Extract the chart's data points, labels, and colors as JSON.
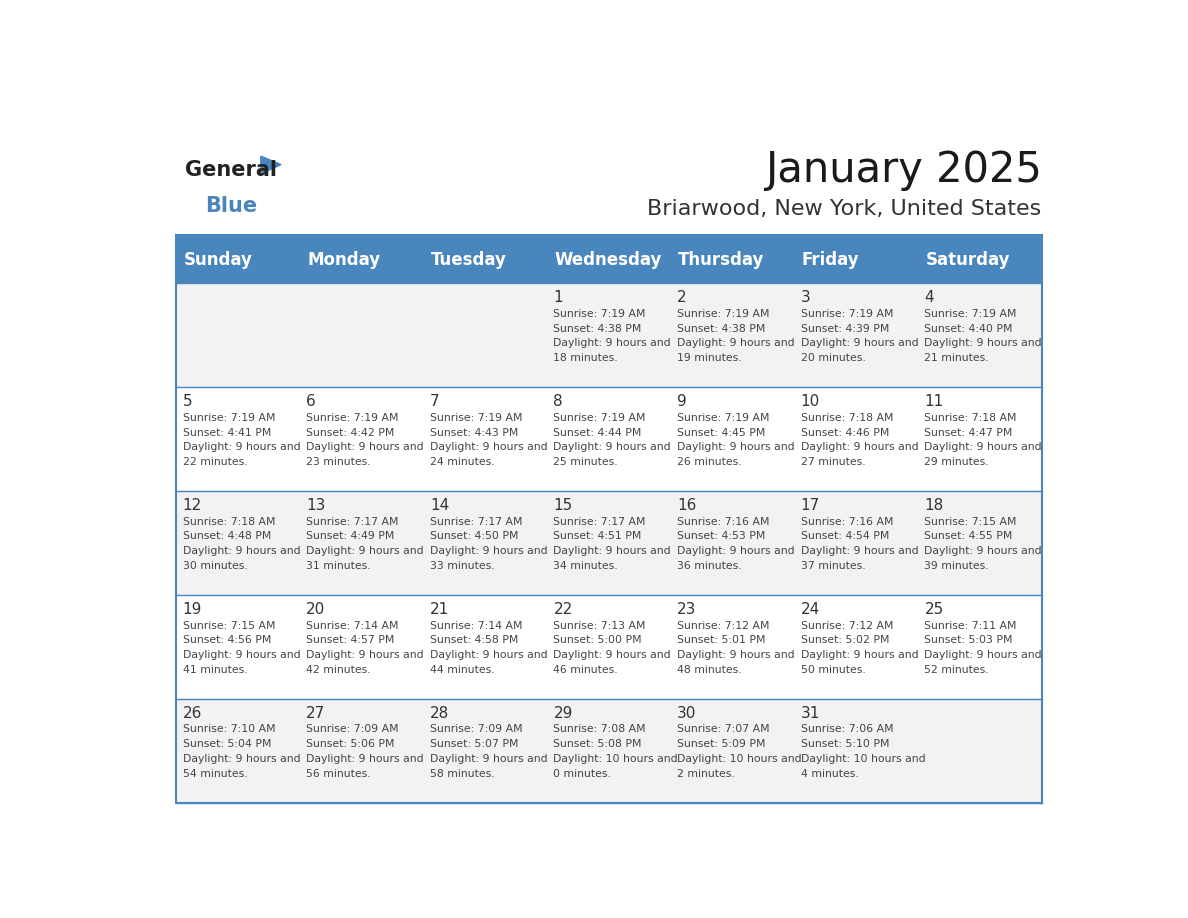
{
  "title": "January 2025",
  "subtitle": "Briarwood, New York, United States",
  "days_of_week": [
    "Sunday",
    "Monday",
    "Tuesday",
    "Wednesday",
    "Thursday",
    "Friday",
    "Saturday"
  ],
  "header_bg": "#4a86be",
  "header_text": "#ffffff",
  "row_bg_even": "#f2f2f2",
  "row_bg_odd": "#ffffff",
  "cell_text_color": "#333333",
  "day_num_color": "#333333",
  "separator_color": "#4a86be",
  "logo_general_color": "#222222",
  "logo_blue_color": "#4a86be",
  "calendar_data": [
    {
      "day": 1,
      "col": 3,
      "row": 0,
      "sunrise": "7:19 AM",
      "sunset": "4:38 PM",
      "daylight": "9 hours and 18 minutes."
    },
    {
      "day": 2,
      "col": 4,
      "row": 0,
      "sunrise": "7:19 AM",
      "sunset": "4:38 PM",
      "daylight": "9 hours and 19 minutes."
    },
    {
      "day": 3,
      "col": 5,
      "row": 0,
      "sunrise": "7:19 AM",
      "sunset": "4:39 PM",
      "daylight": "9 hours and 20 minutes."
    },
    {
      "day": 4,
      "col": 6,
      "row": 0,
      "sunrise": "7:19 AM",
      "sunset": "4:40 PM",
      "daylight": "9 hours and 21 minutes."
    },
    {
      "day": 5,
      "col": 0,
      "row": 1,
      "sunrise": "7:19 AM",
      "sunset": "4:41 PM",
      "daylight": "9 hours and 22 minutes."
    },
    {
      "day": 6,
      "col": 1,
      "row": 1,
      "sunrise": "7:19 AM",
      "sunset": "4:42 PM",
      "daylight": "9 hours and 23 minutes."
    },
    {
      "day": 7,
      "col": 2,
      "row": 1,
      "sunrise": "7:19 AM",
      "sunset": "4:43 PM",
      "daylight": "9 hours and 24 minutes."
    },
    {
      "day": 8,
      "col": 3,
      "row": 1,
      "sunrise": "7:19 AM",
      "sunset": "4:44 PM",
      "daylight": "9 hours and 25 minutes."
    },
    {
      "day": 9,
      "col": 4,
      "row": 1,
      "sunrise": "7:19 AM",
      "sunset": "4:45 PM",
      "daylight": "9 hours and 26 minutes."
    },
    {
      "day": 10,
      "col": 5,
      "row": 1,
      "sunrise": "7:18 AM",
      "sunset": "4:46 PM",
      "daylight": "9 hours and 27 minutes."
    },
    {
      "day": 11,
      "col": 6,
      "row": 1,
      "sunrise": "7:18 AM",
      "sunset": "4:47 PM",
      "daylight": "9 hours and 29 minutes."
    },
    {
      "day": 12,
      "col": 0,
      "row": 2,
      "sunrise": "7:18 AM",
      "sunset": "4:48 PM",
      "daylight": "9 hours and 30 minutes."
    },
    {
      "day": 13,
      "col": 1,
      "row": 2,
      "sunrise": "7:17 AM",
      "sunset": "4:49 PM",
      "daylight": "9 hours and 31 minutes."
    },
    {
      "day": 14,
      "col": 2,
      "row": 2,
      "sunrise": "7:17 AM",
      "sunset": "4:50 PM",
      "daylight": "9 hours and 33 minutes."
    },
    {
      "day": 15,
      "col": 3,
      "row": 2,
      "sunrise": "7:17 AM",
      "sunset": "4:51 PM",
      "daylight": "9 hours and 34 minutes."
    },
    {
      "day": 16,
      "col": 4,
      "row": 2,
      "sunrise": "7:16 AM",
      "sunset": "4:53 PM",
      "daylight": "9 hours and 36 minutes."
    },
    {
      "day": 17,
      "col": 5,
      "row": 2,
      "sunrise": "7:16 AM",
      "sunset": "4:54 PM",
      "daylight": "9 hours and 37 minutes."
    },
    {
      "day": 18,
      "col": 6,
      "row": 2,
      "sunrise": "7:15 AM",
      "sunset": "4:55 PM",
      "daylight": "9 hours and 39 minutes."
    },
    {
      "day": 19,
      "col": 0,
      "row": 3,
      "sunrise": "7:15 AM",
      "sunset": "4:56 PM",
      "daylight": "9 hours and 41 minutes."
    },
    {
      "day": 20,
      "col": 1,
      "row": 3,
      "sunrise": "7:14 AM",
      "sunset": "4:57 PM",
      "daylight": "9 hours and 42 minutes."
    },
    {
      "day": 21,
      "col": 2,
      "row": 3,
      "sunrise": "7:14 AM",
      "sunset": "4:58 PM",
      "daylight": "9 hours and 44 minutes."
    },
    {
      "day": 22,
      "col": 3,
      "row": 3,
      "sunrise": "7:13 AM",
      "sunset": "5:00 PM",
      "daylight": "9 hours and 46 minutes."
    },
    {
      "day": 23,
      "col": 4,
      "row": 3,
      "sunrise": "7:12 AM",
      "sunset": "5:01 PM",
      "daylight": "9 hours and 48 minutes."
    },
    {
      "day": 24,
      "col": 5,
      "row": 3,
      "sunrise": "7:12 AM",
      "sunset": "5:02 PM",
      "daylight": "9 hours and 50 minutes."
    },
    {
      "day": 25,
      "col": 6,
      "row": 3,
      "sunrise": "7:11 AM",
      "sunset": "5:03 PM",
      "daylight": "9 hours and 52 minutes."
    },
    {
      "day": 26,
      "col": 0,
      "row": 4,
      "sunrise": "7:10 AM",
      "sunset": "5:04 PM",
      "daylight": "9 hours and 54 minutes."
    },
    {
      "day": 27,
      "col": 1,
      "row": 4,
      "sunrise": "7:09 AM",
      "sunset": "5:06 PM",
      "daylight": "9 hours and 56 minutes."
    },
    {
      "day": 28,
      "col": 2,
      "row": 4,
      "sunrise": "7:09 AM",
      "sunset": "5:07 PM",
      "daylight": "9 hours and 58 minutes."
    },
    {
      "day": 29,
      "col": 3,
      "row": 4,
      "sunrise": "7:08 AM",
      "sunset": "5:08 PM",
      "daylight": "10 hours and 0 minutes."
    },
    {
      "day": 30,
      "col": 4,
      "row": 4,
      "sunrise": "7:07 AM",
      "sunset": "5:09 PM",
      "daylight": "10 hours and 2 minutes."
    },
    {
      "day": 31,
      "col": 5,
      "row": 4,
      "sunrise": "7:06 AM",
      "sunset": "5:10 PM",
      "daylight": "10 hours and 4 minutes."
    }
  ]
}
